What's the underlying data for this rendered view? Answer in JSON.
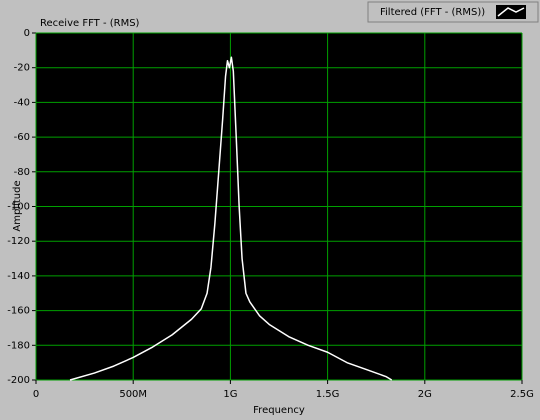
{
  "chart_data": {
    "type": "line",
    "title": "Receive FFT - (RMS)",
    "x_label": "Frequency",
    "y_label": "Amplitude",
    "x": [
      175000000,
      300000000,
      400000000,
      500000000,
      600000000,
      700000000,
      800000000,
      850000000,
      880000000,
      900000000,
      920000000,
      940000000,
      960000000,
      975000000,
      985000000,
      995000000,
      1005000000,
      1015000000,
      1030000000,
      1045000000,
      1060000000,
      1080000000,
      1100000000,
      1150000000,
      1200000000,
      1300000000,
      1400000000,
      1500000000,
      1600000000,
      1700000000,
      1800000000,
      1830000000
    ],
    "series": [
      {
        "name": "Filtered (FFT - (RMS))",
        "color": "#ffffff",
        "values": [
          -200,
          -196,
          -192,
          -187,
          -181,
          -174,
          -165,
          -159,
          -150,
          -135,
          -110,
          -80,
          -50,
          -25,
          -16,
          -20,
          -14,
          -22,
          -60,
          -100,
          -130,
          -150,
          -155,
          -163,
          -168,
          -175,
          -180,
          -184,
          -190,
          -194,
          -198,
          -200
        ]
      }
    ],
    "xlim": [
      0,
      2500000000
    ],
    "xticks": [
      0,
      {
        "value": 500000000,
        "label": "500M"
      },
      {
        "value": 1000000000,
        "label": "1G"
      },
      {
        "value": 1500000000,
        "label": "1.5G"
      },
      {
        "value": 2000000000,
        "label": "2G"
      },
      {
        "value": 2500000000,
        "label": "2.5G"
      }
    ],
    "ylim": [
      -200,
      0
    ],
    "yticks": [
      -200,
      -180,
      -160,
      -140,
      -120,
      -100,
      -80,
      -60,
      -40,
      -20,
      0
    ],
    "grid": true,
    "grid_color": "#00a000",
    "plot_background": "#000000",
    "legend": "top-right"
  }
}
